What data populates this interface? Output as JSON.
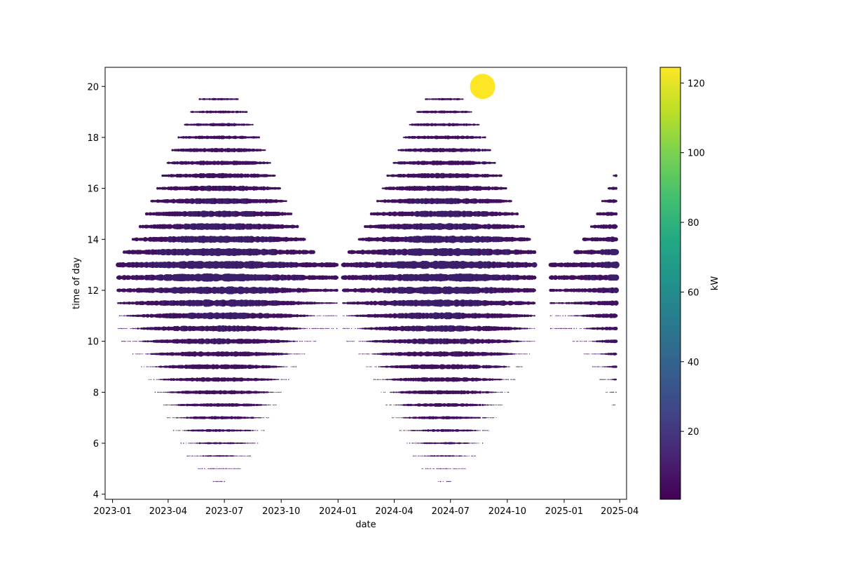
{
  "chart_data": {
    "type": "scatter",
    "xlabel": "date",
    "ylabel": "time of day",
    "colorbar_label": "kW",
    "colormap": "viridis",
    "colors": {
      "low": "#440154",
      "high": "#fde725",
      "bulk_point": "#40105f",
      "bulk_point_large": "#3b1f6a"
    },
    "x_tick_labels": [
      "2023-01",
      "2023-04",
      "2023-07",
      "2023-10",
      "2024-01",
      "2024-04",
      "2024-07",
      "2024-10",
      "2025-01",
      "2025-04"
    ],
    "y_tick_labels": [
      "4",
      "6",
      "8",
      "10",
      "12",
      "14",
      "16",
      "18",
      "20"
    ],
    "y_ticks": [
      4,
      6,
      8,
      10,
      12,
      14,
      16,
      18,
      20
    ],
    "colorbar_tick_labels": [
      "20",
      "40",
      "60",
      "80",
      "100",
      "120"
    ],
    "colorbar_ticks": [
      20,
      40,
      60,
      80,
      100,
      120
    ],
    "xlim": [
      "2022-12-20",
      "2025-04-12"
    ],
    "ylim": [
      3.8,
      20.75
    ],
    "colorbar_range": [
      0.5,
      124.5
    ],
    "grid": false,
    "time_slots": [
      4.5,
      5,
      5.5,
      6,
      6.5,
      7,
      7.5,
      8,
      8.5,
      9,
      9.5,
      10,
      10.5,
      11,
      11.5,
      12,
      12.5,
      13,
      13.5,
      14,
      14.5,
      15,
      15.5,
      16,
      16.5,
      17,
      17.5,
      18,
      18.5,
      19,
      19.5,
      20
    ],
    "data_segments": [
      {
        "start": "2023-01-10",
        "end": "2023-12-31"
      },
      {
        "start": "2024-01-09",
        "end": "2024-08-19"
      },
      {
        "start": "2024-08-22",
        "end": "2024-11-14"
      },
      {
        "start": "2024-12-10",
        "end": "2025-03-26"
      }
    ],
    "outlier": {
      "x": "2024-08-22",
      "y": 20,
      "value": 124
    }
  }
}
